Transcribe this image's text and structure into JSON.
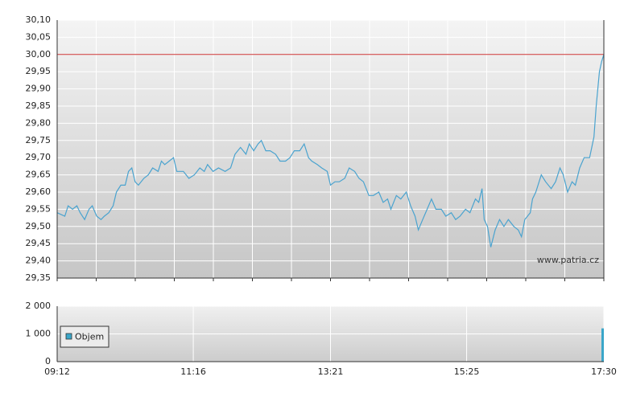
{
  "chart_data": [
    {
      "type": "line",
      "xlim": [
        552,
        1050
      ],
      "x_grid_divisions": 14,
      "ylim": [
        29.35,
        30.1
      ],
      "yticks": [
        {
          "value": 29.35,
          "label": "29,35"
        },
        {
          "value": 29.4,
          "label": "29,40"
        },
        {
          "value": 29.45,
          "label": "29,45"
        },
        {
          "value": 29.5,
          "label": "29,50"
        },
        {
          "value": 29.55,
          "label": "29,55"
        },
        {
          "value": 29.6,
          "label": "29,60"
        },
        {
          "value": 29.65,
          "label": "29,65"
        },
        {
          "value": 29.7,
          "label": "29,70"
        },
        {
          "value": 29.75,
          "label": "29,75"
        },
        {
          "value": 29.8,
          "label": "29,80"
        },
        {
          "value": 29.85,
          "label": "29,85"
        },
        {
          "value": 29.9,
          "label": "29,90"
        },
        {
          "value": 29.95,
          "label": "29,95"
        },
        {
          "value": 30.0,
          "label": "30,00"
        },
        {
          "value": 30.05,
          "label": "30,05"
        },
        {
          "value": 30.1,
          "label": "30,10"
        }
      ],
      "grid": true,
      "reference_line": 30.0,
      "reference_color": "#cc3333",
      "color": "#4aa3cf",
      "watermark": "www.patria.cz",
      "x": [
        552,
        559,
        562,
        566,
        570,
        573,
        577,
        581,
        584,
        588,
        592,
        595,
        599,
        603,
        606,
        610,
        614,
        617,
        620,
        623,
        626,
        631,
        635,
        639,
        644,
        647,
        650,
        654,
        658,
        661,
        667,
        672,
        677,
        682,
        686,
        689,
        694,
        699,
        705,
        710,
        714,
        719,
        724,
        727,
        731,
        735,
        738,
        742,
        746,
        751,
        755,
        760,
        764,
        768,
        773,
        777,
        781,
        784,
        789,
        793,
        798,
        801,
        805,
        809,
        814,
        818,
        823,
        827,
        831,
        836,
        840,
        845,
        849,
        853,
        856,
        861,
        865,
        870,
        874,
        878,
        881,
        885,
        889,
        893,
        897,
        902,
        906,
        911,
        915,
        919,
        924,
        928,
        933,
        936,
        939,
        941,
        944,
        947,
        951,
        955,
        959,
        963,
        968,
        972,
        975,
        978,
        983,
        985,
        988,
        993,
        997,
        1002,
        1006,
        1010,
        1013,
        1017,
        1021,
        1024,
        1028,
        1032,
        1037,
        1041,
        1043,
        1046,
        1048,
        1050
      ],
      "values": [
        29.54,
        29.53,
        29.56,
        29.55,
        29.56,
        29.54,
        29.52,
        29.55,
        29.56,
        29.53,
        29.52,
        29.53,
        29.54,
        29.56,
        29.6,
        29.62,
        29.62,
        29.66,
        29.67,
        29.63,
        29.62,
        29.64,
        29.65,
        29.67,
        29.66,
        29.69,
        29.68,
        29.69,
        29.7,
        29.66,
        29.66,
        29.64,
        29.65,
        29.67,
        29.66,
        29.68,
        29.66,
        29.67,
        29.66,
        29.67,
        29.71,
        29.73,
        29.71,
        29.74,
        29.72,
        29.74,
        29.75,
        29.72,
        29.72,
        29.71,
        29.69,
        29.69,
        29.7,
        29.72,
        29.72,
        29.74,
        29.7,
        29.69,
        29.68,
        29.67,
        29.66,
        29.62,
        29.63,
        29.63,
        29.64,
        29.67,
        29.66,
        29.64,
        29.63,
        29.59,
        29.59,
        29.6,
        29.57,
        29.58,
        29.55,
        29.59,
        29.58,
        29.6,
        29.56,
        29.53,
        29.49,
        29.52,
        29.55,
        29.58,
        29.55,
        29.55,
        29.53,
        29.54,
        29.52,
        29.53,
        29.55,
        29.54,
        29.58,
        29.57,
        29.61,
        29.52,
        29.5,
        29.44,
        29.49,
        29.52,
        29.5,
        29.52,
        29.5,
        29.49,
        29.47,
        29.52,
        29.54,
        29.58,
        29.6,
        29.65,
        29.63,
        29.61,
        29.63,
        29.67,
        29.65,
        29.6,
        29.63,
        29.62,
        29.67,
        29.7,
        29.7,
        29.76,
        29.85,
        29.95,
        29.98,
        30.0
      ]
    },
    {
      "type": "bar",
      "xlim": [
        552,
        1050
      ],
      "xticks": [
        {
          "value": 552,
          "label": "09:12"
        },
        {
          "value": 676,
          "label": "11:16"
        },
        {
          "value": 801,
          "label": "13:21"
        },
        {
          "value": 925,
          "label": "15:25"
        },
        {
          "value": 1050,
          "label": "17:30"
        }
      ],
      "ylim": [
        0,
        2000
      ],
      "yticks": [
        0,
        {
          "value": 1000,
          "label": "1 000"
        },
        {
          "value": 2000,
          "label": "2 000"
        }
      ],
      "grid": true,
      "x": [
        1050
      ],
      "series": [
        {
          "name": "Objem",
          "color": "#3aa6c9",
          "values": [
            1200
          ]
        }
      ]
    }
  ]
}
